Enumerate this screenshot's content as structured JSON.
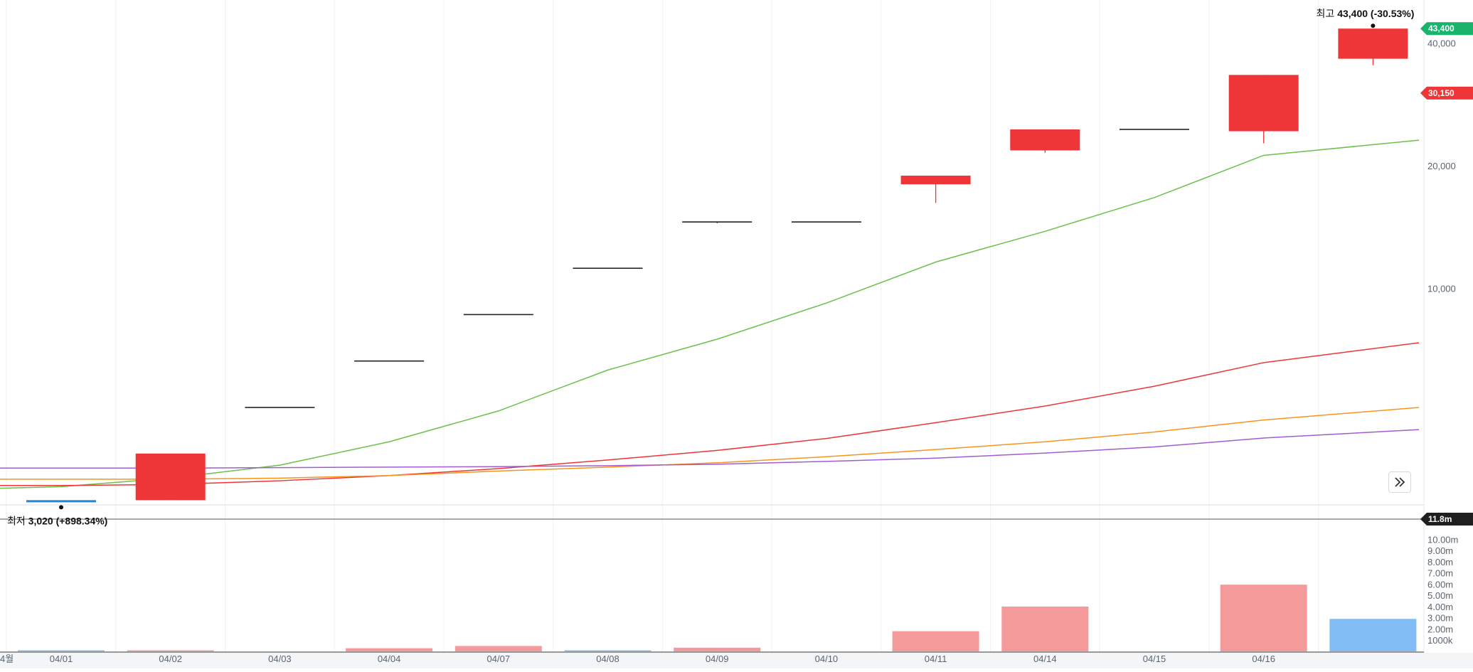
{
  "chart_data": [
    {
      "type": "candlestick",
      "title": "",
      "x_labels": [
        "04/01",
        "04/02",
        "04/03",
        "04/04",
        "04/07",
        "04/08",
        "04/09",
        "04/10",
        "04/11",
        "04/14",
        "04/15",
        "04/16",
        ""
      ],
      "period_label": "4월",
      "y_scale": "log",
      "y_ticks": [
        "10,000",
        "20,000",
        "40,000"
      ],
      "y_tick_values": [
        10000,
        20000,
        40000
      ],
      "ylim": [
        3000,
        49000
      ],
      "colors": {
        "up": "#ee3537",
        "down": "#1e88d8",
        "flat": "#222222"
      },
      "candles": [
        {
          "date": "04/01",
          "open": 3020,
          "high": 3020,
          "low": 3020,
          "close": 3020,
          "dir": "down"
        },
        {
          "date": "04/02",
          "open": 3020,
          "high": 3930,
          "low": 3020,
          "close": 3930,
          "dir": "up"
        },
        {
          "date": "04/03",
          "open": 5100,
          "high": 5100,
          "low": 5100,
          "close": 5100,
          "dir": "flat"
        },
        {
          "date": "04/04",
          "open": 6630,
          "high": 6630,
          "low": 6630,
          "close": 6630,
          "dir": "flat"
        },
        {
          "date": "04/07",
          "open": 8620,
          "high": 8620,
          "low": 8620,
          "close": 8620,
          "dir": "flat"
        },
        {
          "date": "04/08",
          "open": 11200,
          "high": 11200,
          "low": 11200,
          "close": 11200,
          "dir": "flat"
        },
        {
          "date": "04/09",
          "open": 14550,
          "high": 14550,
          "low": 14450,
          "close": 14550,
          "dir": "flat"
        },
        {
          "date": "04/10",
          "open": 14550,
          "high": 14550,
          "low": 14550,
          "close": 14550,
          "dir": "flat"
        },
        {
          "date": "04/11",
          "open": 18000,
          "high": 18900,
          "low": 16200,
          "close": 18900,
          "dir": "up"
        },
        {
          "date": "04/14",
          "open": 21800,
          "high": 24550,
          "low": 21500,
          "close": 24550,
          "dir": "up"
        },
        {
          "date": "04/15",
          "open": 24550,
          "high": 24550,
          "low": 24550,
          "close": 24550,
          "dir": "flat"
        },
        {
          "date": "04/16",
          "open": 24300,
          "high": 33400,
          "low": 22700,
          "close": 33400,
          "dir": "up"
        },
        {
          "date": "",
          "open": 36600,
          "high": 43400,
          "low": 35300,
          "close": 43400,
          "dir": "up"
        }
      ],
      "moving_averages": [
        {
          "color": "#6cc04a",
          "values": [
            3230,
            3260,
            3420,
            3680,
            4200,
            5000,
            6300,
            7500,
            9200,
            11600,
            13800,
            16700,
            21200,
            23100
          ]
        },
        {
          "color": "#ee3537",
          "values": [
            3280,
            3280,
            3300,
            3370,
            3470,
            3610,
            3790,
            4000,
            4280,
            4680,
            5140,
            5750,
            6570,
            7350
          ]
        },
        {
          "color": "#f7941d",
          "values": [
            3400,
            3400,
            3400,
            3420,
            3470,
            3560,
            3640,
            3730,
            3860,
            4020,
            4200,
            4440,
            4750,
            5100
          ]
        },
        {
          "color": "#a05cd0",
          "values": [
            3620,
            3620,
            3620,
            3630,
            3640,
            3650,
            3670,
            3700,
            3760,
            3830,
            3940,
            4080,
            4290,
            4500
          ]
        }
      ],
      "annotations": {
        "high_label": "최고",
        "high_value": "43,400 (-30.53%)",
        "low_label": "최저",
        "low_value": "3,020 (+898.34%)"
      },
      "price_badges": [
        {
          "text": "43,400",
          "value": 43400,
          "color": "#19b36b"
        },
        {
          "text": "30,150",
          "value": 30150,
          "color": "#ee3537"
        }
      ]
    },
    {
      "type": "bar",
      "title": "",
      "series_name": "volume",
      "categories": [
        "04/01",
        "04/02",
        "04/03",
        "04/04",
        "04/07",
        "04/08",
        "04/09",
        "04/10",
        "04/11",
        "04/14",
        "04/15",
        "04/16",
        ""
      ],
      "values": [
        0.02,
        0.03,
        0,
        0.28,
        0.48,
        0.08,
        0.33,
        0,
        1.8,
        4.0,
        0,
        5.95,
        2.9
      ],
      "unit": "m",
      "ylim": [
        0,
        11.8
      ],
      "bar_colors": [
        "down",
        "up",
        "flat",
        "up",
        "up",
        "down",
        "up",
        "flat",
        "up",
        "up",
        "flat",
        "up",
        "down"
      ],
      "color_map": {
        "up": "#f49a9b",
        "down": "#82bcf4",
        "flat": "#cccccc"
      },
      "y_ticks": [
        "10.00m",
        "9.00m",
        "8.00m",
        "7.00m",
        "6.00m",
        "5.00m",
        "4.00m",
        "3.00m",
        "2.00m",
        "1000k"
      ],
      "y_tick_values": [
        10,
        9,
        8,
        7,
        6,
        5,
        4,
        3,
        2,
        1
      ],
      "max_badge": "11.8m"
    }
  ],
  "controls": {
    "expand_icon": "double-chevron-right-icon"
  }
}
